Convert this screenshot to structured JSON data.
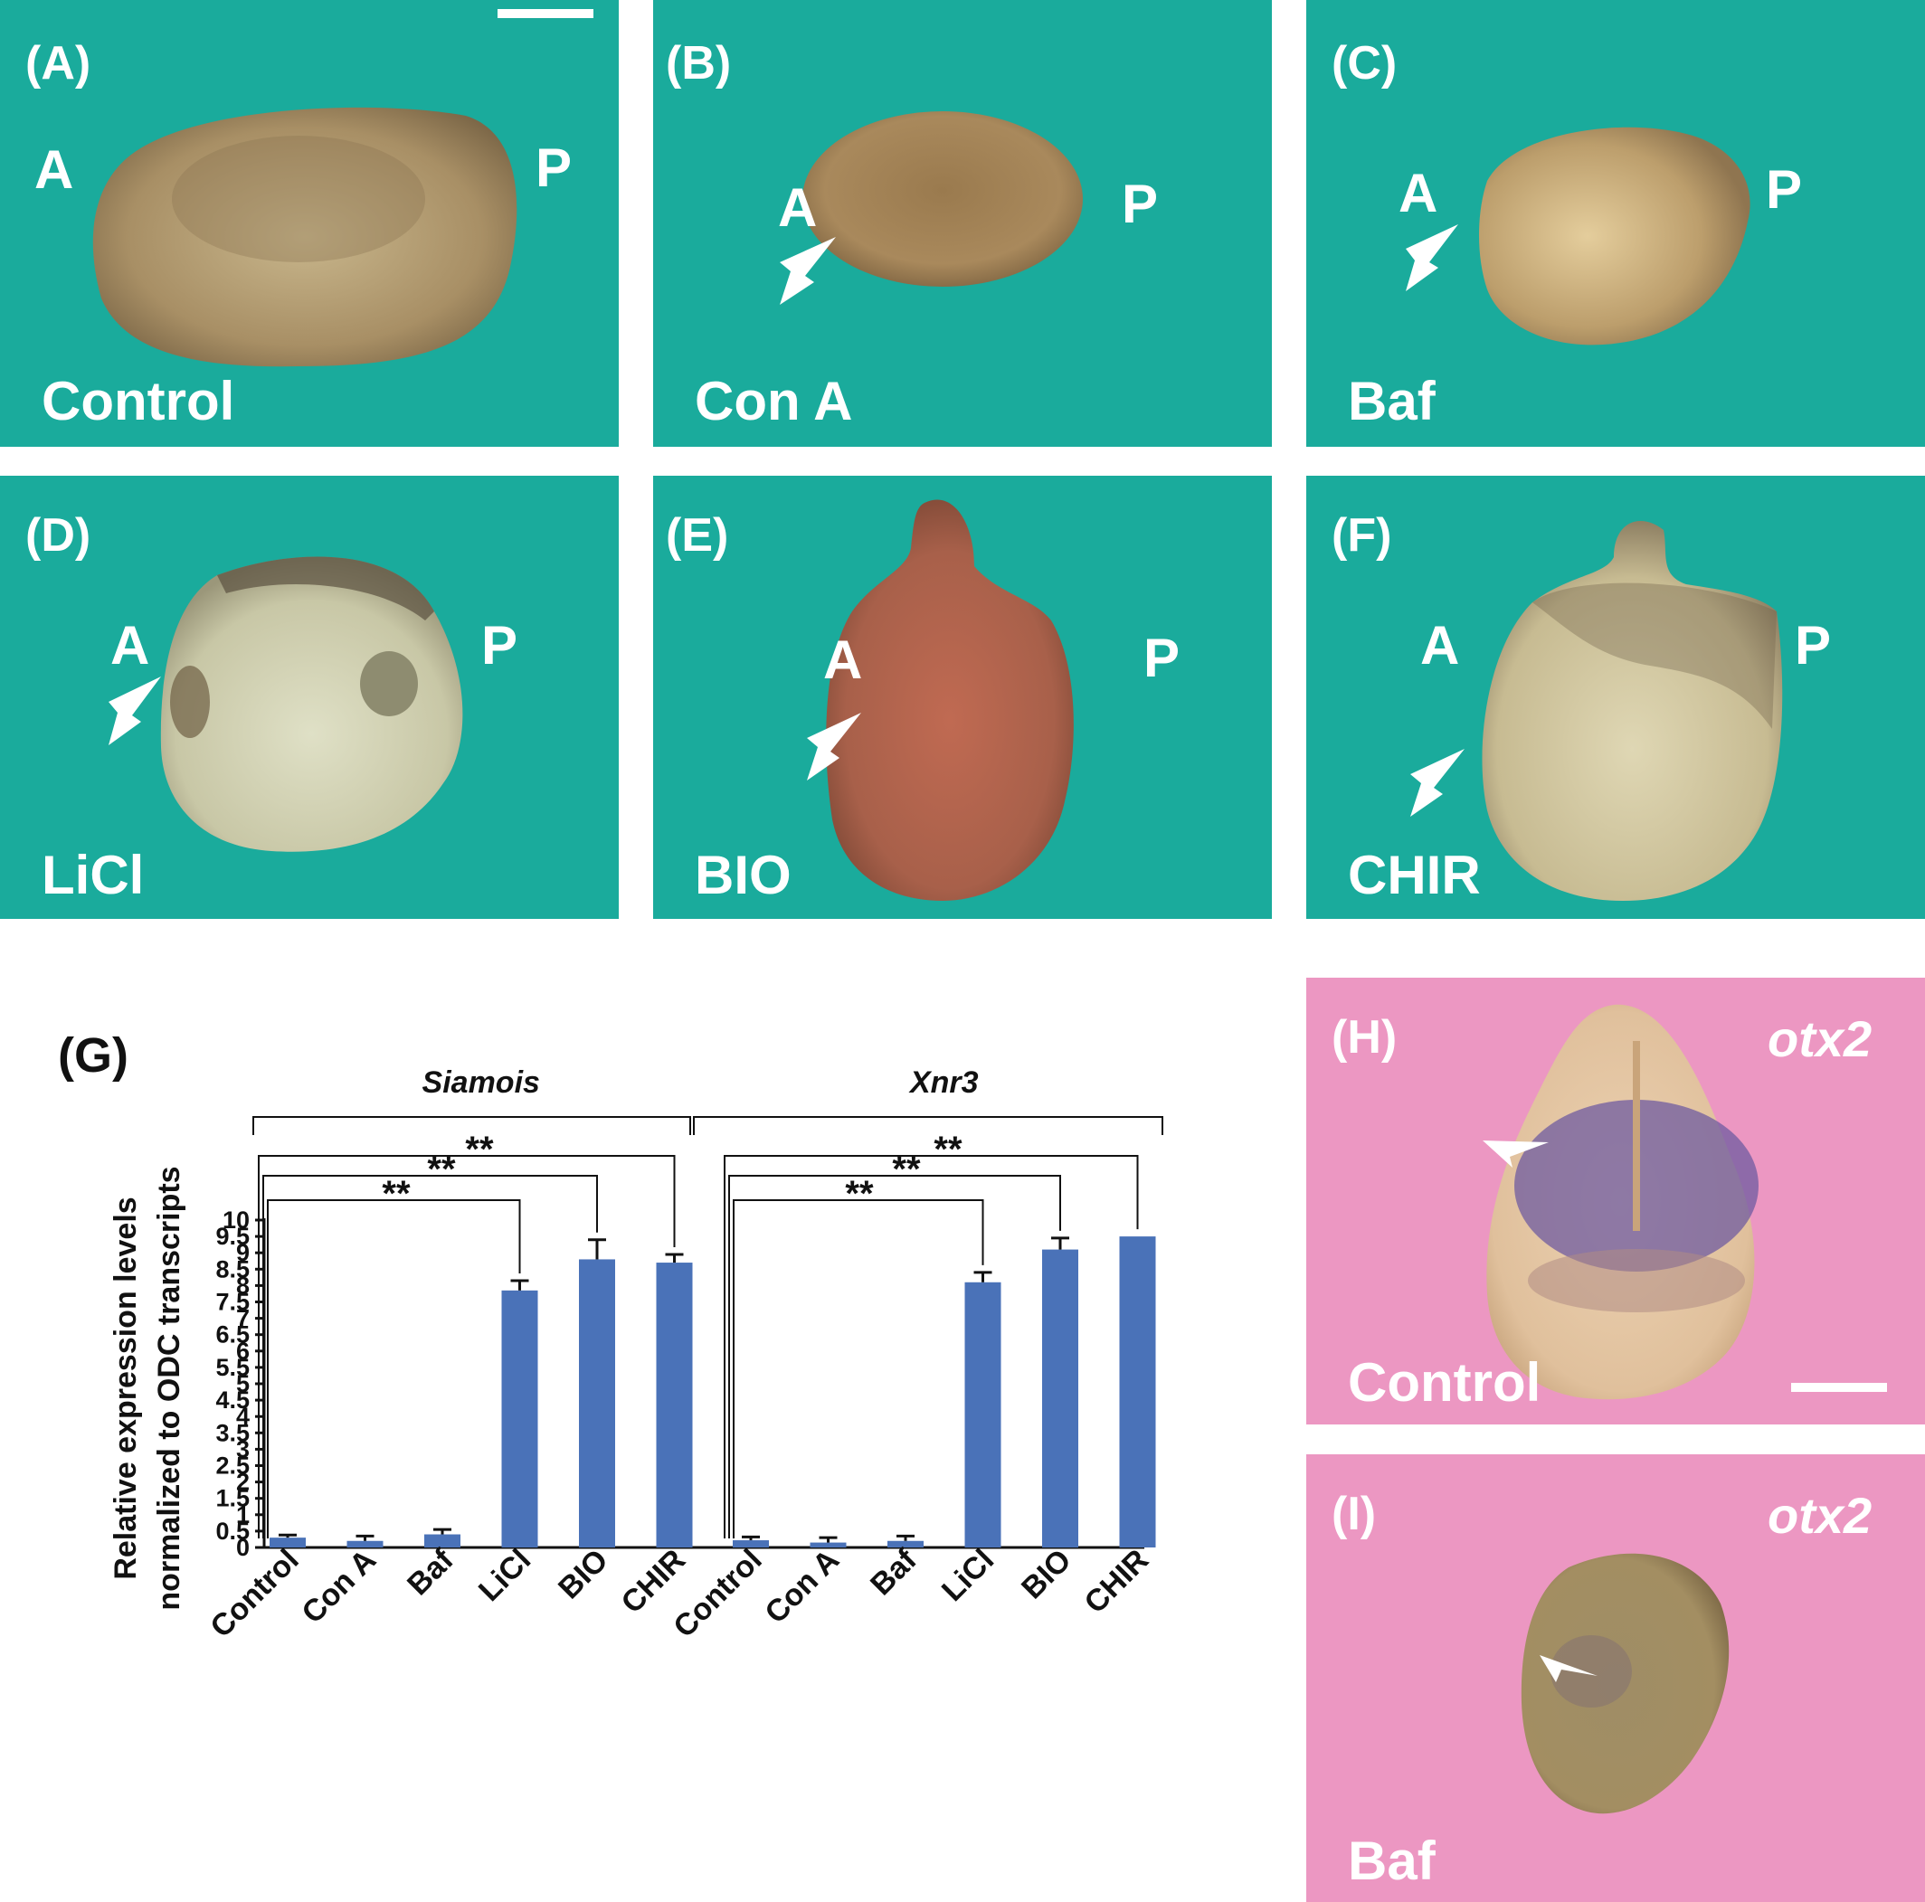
{
  "panels": {
    "a": {
      "label": "(A)",
      "condition": "Control",
      "anterior": "A",
      "posterior": "P"
    },
    "b": {
      "label": "(B)",
      "condition": "Con A",
      "anterior": "A",
      "posterior": "P"
    },
    "c": {
      "label": "(C)",
      "condition": "Baf",
      "anterior": "A",
      "posterior": "P"
    },
    "d": {
      "label": "(D)",
      "condition": "LiCl",
      "anterior": "A",
      "posterior": "P"
    },
    "e": {
      "label": "(E)",
      "condition": "BIO",
      "anterior": "A",
      "posterior": "P"
    },
    "f": {
      "label": "(F)",
      "condition": "CHIR",
      "anterior": "A",
      "posterior": "P"
    },
    "g": {
      "label": "(G)"
    },
    "h": {
      "label": "(H)",
      "condition": "Control",
      "gene": "otx2"
    },
    "i": {
      "label": "(I)",
      "condition": "Baf",
      "gene": "otx2"
    }
  },
  "colors": {
    "teal_background": "#1aab9c",
    "pink_background": "#ec97c2",
    "bar": "#4a72b8"
  },
  "chart_data": {
    "type": "bar",
    "ylabel_line1": "Relative expression levels",
    "ylabel_line2": "normalized to ODC  transcripts",
    "ylim": [
      0,
      10
    ],
    "yticks": [
      "0",
      "0.5",
      "1",
      "1.5",
      "2",
      "2.5",
      "3",
      "3.5",
      "4",
      "4.5",
      "5",
      "5.5",
      "6",
      "6.5",
      "7",
      "7.5",
      "8",
      "8.5",
      "9",
      "9.5",
      "10"
    ],
    "groups": [
      {
        "name": "Siamois",
        "categories": [
          "Control",
          "Con A",
          "Baf",
          "LiCl",
          "BIO",
          "CHIR"
        ],
        "values": [
          0.3,
          0.2,
          0.4,
          7.85,
          8.8,
          8.7
        ],
        "errors": [
          0.08,
          0.15,
          0.15,
          0.3,
          0.6,
          0.25
        ]
      },
      {
        "name": "Xnr3",
        "categories": [
          "Control",
          "Con A",
          "Baf",
          "LiCl",
          "BIO",
          "CHIR"
        ],
        "values": [
          0.22,
          0.15,
          0.2,
          8.1,
          9.1,
          9.5
        ],
        "errors": [
          0.1,
          0.15,
          0.15,
          0.3,
          0.35,
          0
        ]
      }
    ],
    "significance": "**",
    "grid": false
  }
}
